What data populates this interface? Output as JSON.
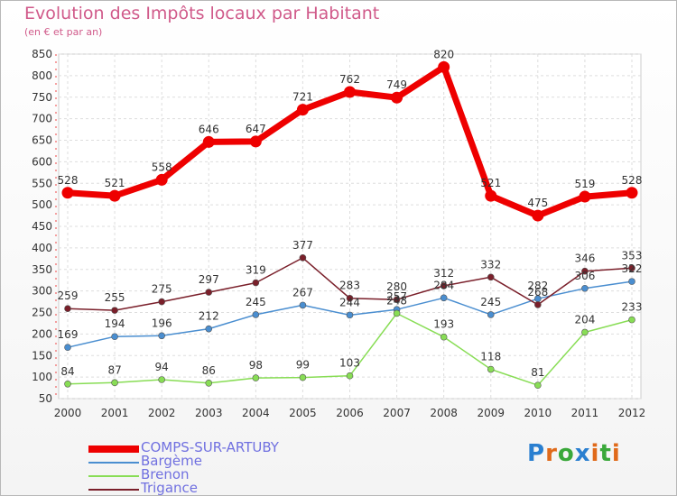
{
  "header": {
    "title": "Evolution des Impôts locaux par Habitant",
    "subtitle": "(en € et par an)"
  },
  "brand": {
    "text": "Proxiti",
    "letters": [
      "P",
      "r",
      "o",
      "x",
      "i",
      "t",
      "i"
    ],
    "letter_colors": [
      "#2a7fd0",
      "#e06a1a",
      "#3aa83a",
      "#2a7fd0",
      "#e06a1a",
      "#3aa83a",
      "#e06a1a"
    ]
  },
  "chart_data": {
    "type": "line",
    "x": [
      "2000",
      "2001",
      "2002",
      "2003",
      "2004",
      "2005",
      "2006",
      "2007",
      "2008",
      "2009",
      "2010",
      "2011",
      "2012"
    ],
    "ylim": [
      50,
      850
    ],
    "yticks": [
      50,
      100,
      150,
      200,
      250,
      300,
      350,
      400,
      450,
      500,
      550,
      600,
      650,
      700,
      750,
      800,
      850
    ],
    "grid": true,
    "legend_position": "bottom-left",
    "series": [
      {
        "name": "COMPS-SUR-ARTUBY",
        "color": "#ee0000",
        "emphasis": true,
        "values": [
          528,
          521,
          558,
          646,
          647,
          721,
          762,
          749,
          820,
          521,
          475,
          519,
          528
        ]
      },
      {
        "name": "Bargème",
        "color": "#4a8ed0",
        "emphasis": false,
        "values": [
          169,
          194,
          196,
          212,
          245,
          267,
          244,
          257,
          284,
          245,
          282,
          306,
          322
        ]
      },
      {
        "name": "Brenon",
        "color": "#88dd55",
        "emphasis": false,
        "values": [
          84,
          87,
          94,
          86,
          98,
          99,
          103,
          248,
          193,
          118,
          81,
          204,
          233
        ]
      },
      {
        "name": "Trigance",
        "color": "#7a1f2a",
        "emphasis": false,
        "values": [
          259,
          255,
          275,
          297,
          319,
          377,
          283,
          280,
          312,
          332,
          268,
          346,
          353
        ]
      }
    ]
  }
}
